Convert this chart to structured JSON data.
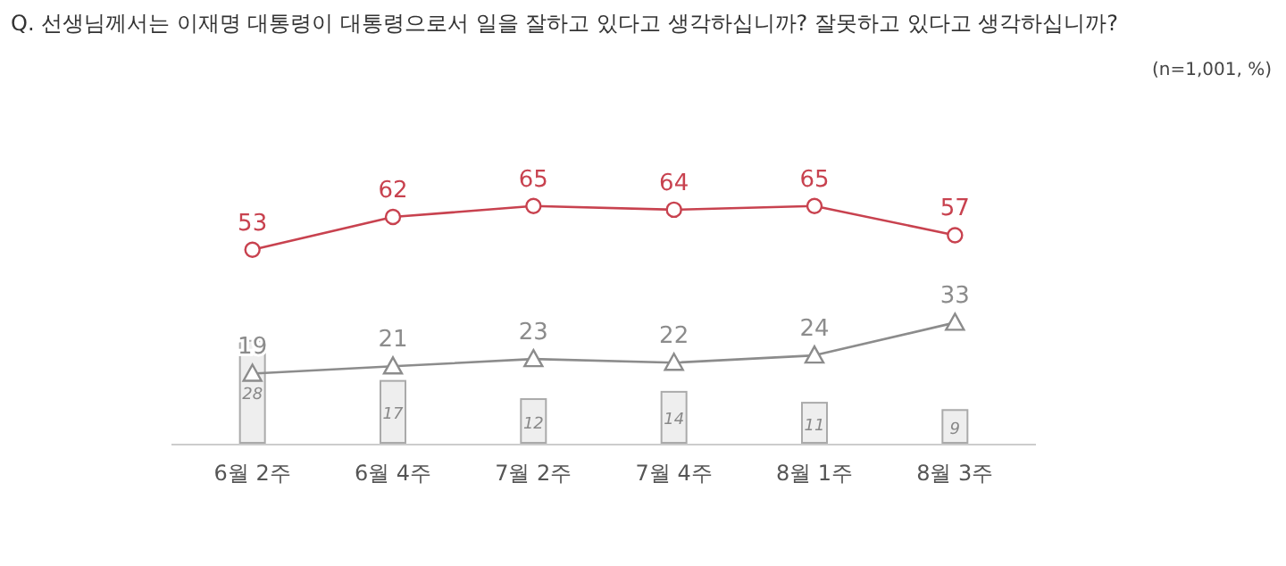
{
  "chart_data": {
    "type": "line",
    "title": "Q. 선생님께서는 이재명 대통령이 대통령으로서 일을 잘하고 있다고 생각하십니까? 잘못하고 있다고 생각하십니까?",
    "annotations": [
      "(n=1,001,  %)"
    ],
    "categories": [
      "6월 2주",
      "6월 4주",
      "7월 2주",
      "7월 4주",
      "8월 1주",
      "8월 3주"
    ],
    "data_labels": true,
    "series": [
      {
        "type": "bar",
        "color": "#eeeeee",
        "values": [
          28,
          17,
          12,
          14,
          11,
          9
        ]
      },
      {
        "type": "line",
        "marker": "triangle",
        "color": "#8c8c8c",
        "values": [
          19,
          21,
          23,
          22,
          24,
          33
        ]
      },
      {
        "marker": "circle",
        "color": "#c8424f",
        "values": [
          53,
          62,
          65,
          64,
          65,
          57
        ]
      }
    ]
  }
}
